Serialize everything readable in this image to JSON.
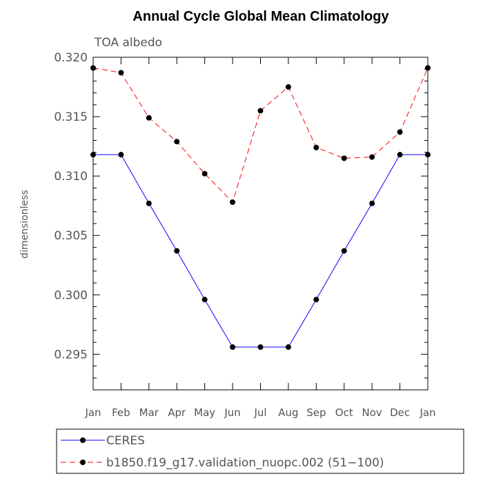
{
  "chart_data": {
    "type": "line",
    "title": "Annual Cycle Global Mean Climatology",
    "subtitle": "TOA albedo",
    "xlabel": "",
    "ylabel": "dimensionless",
    "categories": [
      "Jan",
      "Feb",
      "Mar",
      "Apr",
      "May",
      "Jun",
      "Jul",
      "Aug",
      "Sep",
      "Oct",
      "Nov",
      "Dec",
      "Jan"
    ],
    "ylim": [
      0.292,
      0.32
    ],
    "yticks": [
      0.295,
      0.3,
      0.305,
      0.31,
      0.315,
      0.32
    ],
    "ytick_labels": [
      "0.295",
      "0.300",
      "0.305",
      "0.310",
      "0.315",
      "0.320"
    ],
    "grid": false,
    "legend_position": "bottom",
    "series": [
      {
        "name": "CERES",
        "color": "#0000ff",
        "dash": "solid",
        "values": [
          0.3118,
          0.3118,
          0.3077,
          0.3037,
          0.2996,
          0.2956,
          0.2956,
          0.2956,
          0.2996,
          0.3037,
          0.3077,
          0.3118,
          0.3118
        ]
      },
      {
        "name": "b1850.f19_g17.validation_nuopc.002 (51−100)",
        "color": "#ff0000",
        "dash": "dashed",
        "values": [
          0.3191,
          0.3187,
          0.3149,
          0.3129,
          0.3102,
          0.3078,
          0.3155,
          0.3175,
          0.3124,
          0.3115,
          0.3116,
          0.3137,
          0.3191
        ]
      }
    ]
  }
}
